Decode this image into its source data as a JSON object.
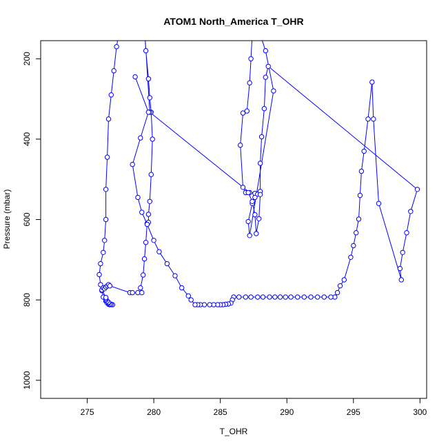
{
  "chart_data": {
    "type": "line",
    "title": "ATOM1 North_America T_OHR",
    "xlabel": "T_OHR",
    "ylabel": "Pressure (mbar)",
    "xlim": [
      271.5,
      300.5
    ],
    "ylim": [
      1045,
      155
    ],
    "y_reversed": true,
    "grid": false,
    "legend": "none",
    "x_ticks": [
      275,
      280,
      285,
      290,
      295,
      300
    ],
    "y_ticks": [
      200,
      400,
      600,
      800,
      1000
    ],
    "series": [
      {
        "color": "#0000ff",
        "marker": "open-circle",
        "points": [
          [
            277.4,
            130
          ],
          [
            277.2,
            170
          ],
          [
            277.0,
            230
          ],
          [
            276.8,
            290
          ],
          [
            276.6,
            350
          ],
          [
            276.5,
            445
          ],
          [
            276.4,
            525
          ],
          [
            276.4,
            600
          ],
          [
            276.3,
            652
          ],
          [
            276.2,
            682
          ],
          [
            276.0,
            710
          ],
          [
            275.9,
            737
          ],
          [
            276.0,
            762
          ],
          [
            276.1,
            777
          ],
          [
            276.2,
            793
          ],
          [
            276.4,
            803
          ],
          [
            276.5,
            808
          ],
          [
            276.6,
            811
          ],
          [
            276.7,
            812
          ],
          [
            276.9,
            812
          ],
          [
            276.8,
            811
          ],
          [
            276.7,
            810
          ],
          [
            276.6,
            808
          ],
          [
            276.6,
            806
          ],
          [
            276.5,
            803
          ],
          [
            276.4,
            800
          ],
          [
            276.4,
            797
          ],
          [
            276.4,
            794
          ],
          [
            276.1,
            775
          ],
          [
            276.2,
            770
          ],
          [
            276.3,
            772
          ],
          [
            276.4,
            768
          ],
          [
            276.5,
            765
          ],
          [
            276.6,
            762
          ],
          [
            276.7,
            765
          ],
          [
            278.2,
            782
          ],
          [
            278.4,
            782
          ],
          [
            278.8,
            782
          ],
          [
            279.1,
            782
          ],
          [
            279.0,
            770
          ],
          [
            279.2,
            738
          ],
          [
            279.3,
            698
          ],
          [
            279.4,
            657
          ],
          [
            279.5,
            610
          ],
          [
            279.6,
            607
          ],
          [
            279.6,
            587
          ],
          [
            279.7,
            555
          ],
          [
            279.8,
            488
          ],
          [
            279.9,
            400
          ],
          [
            279.8,
            333
          ],
          [
            279.7,
            297
          ],
          [
            279.6,
            250
          ],
          [
            279.4,
            180
          ],
          [
            279.3,
            120
          ],
          [
            279.7,
            333
          ],
          [
            287.2,
            533
          ],
          [
            287.6,
            535
          ],
          [
            287.8,
            537
          ],
          [
            288.0,
            530
          ],
          [
            287.6,
            545
          ],
          [
            287.4,
            560
          ],
          [
            287.1,
            605
          ],
          [
            287.2,
            640
          ],
          [
            289.0,
            280
          ],
          [
            288.4,
            180
          ],
          [
            287.6,
            100
          ],
          [
            287.4,
            140
          ],
          [
            287.3,
            200
          ],
          [
            287.2,
            260
          ],
          [
            287.0,
            330
          ],
          [
            286.7,
            335
          ],
          [
            286.5,
            415
          ],
          [
            286.7,
            520
          ],
          [
            286.9,
            533
          ],
          [
            287.1,
            533
          ],
          [
            287.4,
            555
          ],
          [
            287.6,
            588
          ],
          [
            287.7,
            635
          ],
          [
            287.9,
            598
          ],
          [
            288.0,
            538
          ],
          [
            288.0,
            460
          ],
          [
            288.1,
            394
          ],
          [
            288.3,
            324
          ],
          [
            288.4,
            246
          ],
          [
            288.6,
            219
          ],
          [
            299.8,
            525
          ],
          [
            299.3,
            580
          ],
          [
            299.0,
            633
          ],
          [
            298.7,
            682
          ],
          [
            298.5,
            722
          ],
          [
            298.6,
            750
          ],
          [
            296.9,
            560
          ],
          [
            296.5,
            350
          ],
          [
            296.4,
            258
          ],
          [
            296.1,
            350
          ],
          [
            295.8,
            430
          ],
          [
            295.6,
            480
          ],
          [
            295.5,
            540
          ],
          [
            295.4,
            599
          ],
          [
            295.2,
            633
          ],
          [
            295.0,
            665
          ],
          [
            294.8,
            694
          ],
          [
            294.3,
            750
          ],
          [
            294.0,
            765
          ],
          [
            293.8,
            782
          ],
          [
            293.6,
            793
          ],
          [
            293.3,
            793
          ],
          [
            292.8,
            793
          ],
          [
            292.3,
            793
          ],
          [
            291.8,
            793
          ],
          [
            291.3,
            793
          ],
          [
            290.8,
            793
          ],
          [
            290.3,
            793
          ],
          [
            289.9,
            793
          ],
          [
            289.5,
            793
          ],
          [
            289.1,
            793
          ],
          [
            288.7,
            793
          ],
          [
            288.2,
            793
          ],
          [
            287.8,
            793
          ],
          [
            287.3,
            793
          ],
          [
            286.9,
            793
          ],
          [
            286.4,
            793
          ],
          [
            286.0,
            793
          ],
          [
            285.9,
            800
          ],
          [
            285.8,
            808
          ],
          [
            285.6,
            810
          ],
          [
            285.4,
            811
          ],
          [
            285.2,
            812
          ],
          [
            285.0,
            812
          ],
          [
            284.8,
            812
          ],
          [
            284.5,
            812
          ],
          [
            284.2,
            812
          ],
          [
            283.8,
            812
          ],
          [
            283.5,
            812
          ],
          [
            283.3,
            812
          ],
          [
            283.1,
            812
          ],
          [
            282.8,
            800
          ],
          [
            282.6,
            790
          ],
          [
            282.1,
            770
          ],
          [
            281.6,
            740
          ],
          [
            281.0,
            710
          ],
          [
            280.4,
            680
          ],
          [
            280.0,
            652
          ],
          [
            279.5,
            612
          ],
          [
            279.1,
            582
          ],
          [
            278.8,
            545
          ],
          [
            278.4,
            463
          ],
          [
            279.0,
            397
          ],
          [
            279.6,
            333
          ],
          [
            278.6,
            245
          ]
        ]
      }
    ]
  }
}
